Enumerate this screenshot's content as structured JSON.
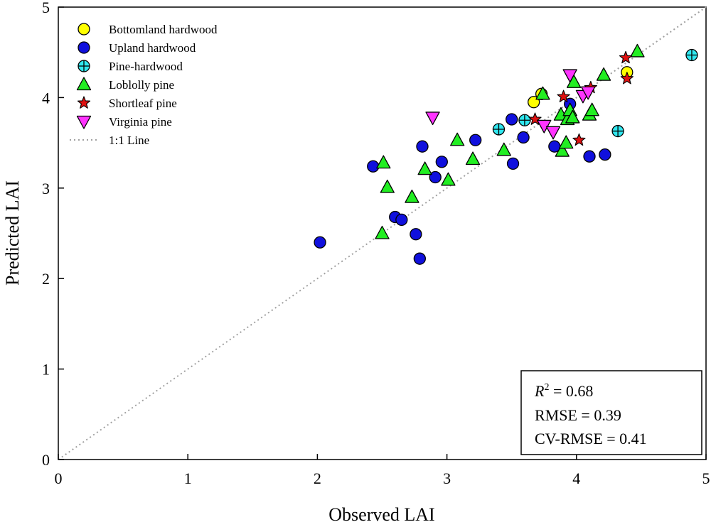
{
  "chart_data": {
    "type": "scatter",
    "title": "",
    "xlabel": "Observed LAI",
    "ylabel": "Predicted LAI",
    "xlim": [
      0,
      5
    ],
    "ylim": [
      0,
      5
    ],
    "xticks": [
      "0",
      "1",
      "2",
      "3",
      "4",
      "5"
    ],
    "yticks": [
      "0",
      "1",
      "2",
      "3",
      "4",
      "5"
    ],
    "grid": false,
    "legend_position": "top-left",
    "one_to_one_line": {
      "name": "1:1 Line",
      "color": "#a0a0a0"
    },
    "stats": {
      "r2_symbol": "R",
      "r2_exponent": "2",
      "r2_value": " = 0.68",
      "rmse": "RMSE = 0.39",
      "cv_rmse": "CV-RMSE = 0.41"
    },
    "series": [
      {
        "name": "Bottomland hardwood",
        "marker": "circle",
        "color": "#ffff00",
        "points": [
          [
            3.67,
            3.95
          ],
          [
            3.73,
            4.04
          ],
          [
            4.39,
            4.28
          ]
        ]
      },
      {
        "name": "Upland hardwood",
        "marker": "circle",
        "color": "#1010dd",
        "points": [
          [
            2.02,
            2.4
          ],
          [
            2.43,
            3.24
          ],
          [
            2.6,
            2.68
          ],
          [
            2.65,
            2.65
          ],
          [
            2.76,
            2.49
          ],
          [
            2.79,
            2.22
          ],
          [
            2.81,
            3.46
          ],
          [
            2.91,
            3.12
          ],
          [
            2.96,
            3.29
          ],
          [
            3.22,
            3.53
          ],
          [
            3.5,
            3.76
          ],
          [
            3.51,
            3.27
          ],
          [
            3.59,
            3.56
          ],
          [
            3.83,
            3.46
          ],
          [
            3.95,
            3.93
          ],
          [
            4.1,
            3.35
          ],
          [
            4.22,
            3.37
          ]
        ]
      },
      {
        "name": "Pine-hardwood",
        "marker": "circle-cross",
        "color": "#30e8f0",
        "points": [
          [
            3.4,
            3.65
          ],
          [
            3.6,
            3.75
          ],
          [
            4.32,
            3.63
          ],
          [
            4.89,
            4.47
          ]
        ]
      },
      {
        "name": "Loblolly pine",
        "marker": "triangle-up",
        "color": "#22ee22",
        "points": [
          [
            2.5,
            2.5
          ],
          [
            2.51,
            3.28
          ],
          [
            2.54,
            3.01
          ],
          [
            2.73,
            2.9
          ],
          [
            2.83,
            3.21
          ],
          [
            3.01,
            3.09
          ],
          [
            3.08,
            3.53
          ],
          [
            3.2,
            3.32
          ],
          [
            3.44,
            3.42
          ],
          [
            3.74,
            4.04
          ],
          [
            3.88,
            3.81
          ],
          [
            3.89,
            3.41
          ],
          [
            3.92,
            3.5
          ],
          [
            3.93,
            3.76
          ],
          [
            3.95,
            3.86
          ],
          [
            3.97,
            3.78
          ],
          [
            3.98,
            4.17
          ],
          [
            4.1,
            3.81
          ],
          [
            4.12,
            3.86
          ],
          [
            4.21,
            4.25
          ],
          [
            4.47,
            4.51
          ]
        ]
      },
      {
        "name": "Shortleaf pine",
        "marker": "star",
        "color": "#dd1111",
        "points": [
          [
            3.68,
            3.76
          ],
          [
            3.9,
            4.01
          ],
          [
            4.02,
            3.53
          ],
          [
            4.11,
            4.11
          ],
          [
            4.38,
            4.44
          ],
          [
            4.39,
            4.21
          ]
        ]
      },
      {
        "name": "Virginia pine",
        "marker": "triangle-down",
        "color": "#ff33ff",
        "points": [
          [
            2.89,
            3.78
          ],
          [
            3.75,
            3.69
          ],
          [
            3.82,
            3.62
          ],
          [
            3.95,
            4.25
          ],
          [
            4.05,
            4.02
          ],
          [
            4.09,
            4.06
          ]
        ]
      }
    ]
  }
}
